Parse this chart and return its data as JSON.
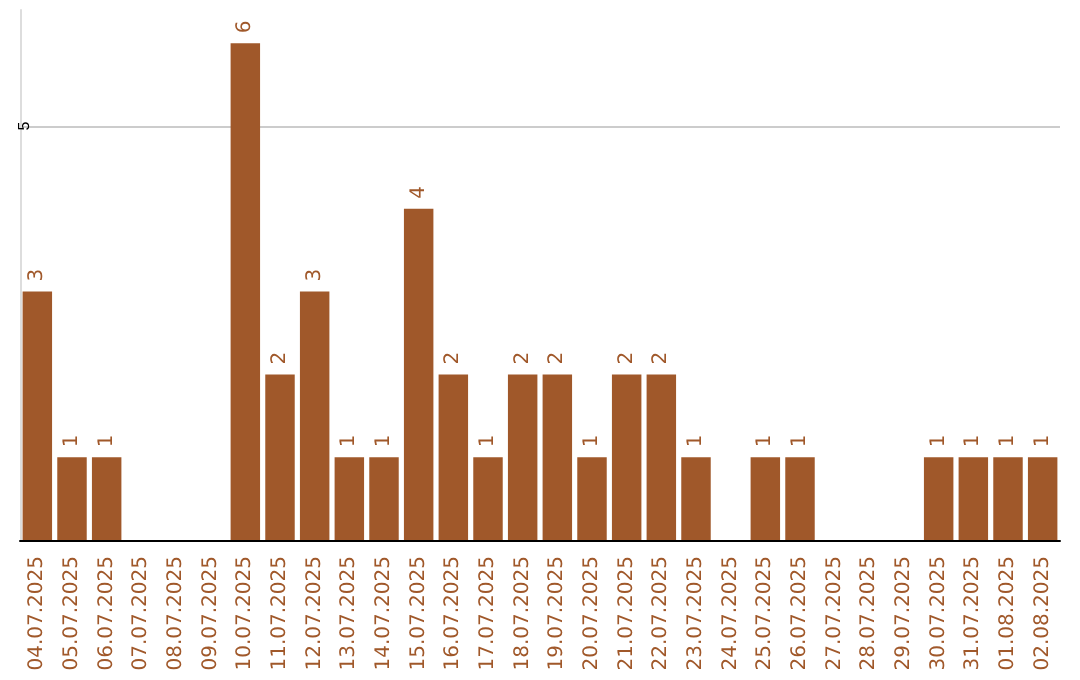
{
  "chart_data": {
    "type": "bar",
    "categories": [
      "04.07.2025",
      "05.07.2025",
      "06.07.2025",
      "07.07.2025",
      "08.07.2025",
      "09.07.2025",
      "10.07.2025",
      "11.07.2025",
      "12.07.2025",
      "13.07.2025",
      "14.07.2025",
      "15.07.2025",
      "16.07.2025",
      "17.07.2025",
      "18.07.2025",
      "19.07.2025",
      "20.07.2025",
      "21.07.2025",
      "22.07.2025",
      "23.07.2025",
      "24.07.2025",
      "25.07.2025",
      "26.07.2025",
      "27.07.2025",
      "28.07.2025",
      "29.07.2025",
      "30.07.2025",
      "31.07.2025",
      "01.08.2025",
      "02.08.2025"
    ],
    "values": [
      3,
      1,
      1,
      0,
      0,
      0,
      6,
      2,
      3,
      1,
      1,
      4,
      2,
      1,
      2,
      2,
      1,
      2,
      2,
      1,
      0,
      1,
      1,
      0,
      0,
      0,
      1,
      1,
      1,
      1
    ],
    "value_labels": [
      "3",
      "1",
      "1",
      null,
      null,
      null,
      "6",
      "2",
      "3",
      "1",
      "1",
      "4",
      "2",
      "1",
      "2",
      "2",
      "1",
      "2",
      "2",
      "1",
      null,
      "1",
      "1",
      null,
      null,
      null,
      "1",
      "1",
      "1",
      "1"
    ],
    "color": "#a0582a",
    "ylim": [
      0,
      6.4
    ],
    "yticks": [
      5
    ],
    "grid": "y"
  }
}
